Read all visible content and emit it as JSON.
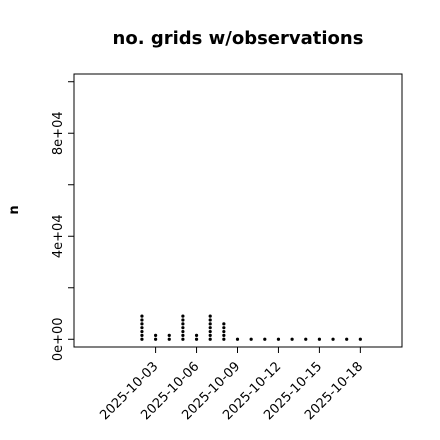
{
  "chart_data": {
    "type": "scatter",
    "title": "no. grids w/observations",
    "xlabel": "",
    "ylabel": "n",
    "y_ticks": [
      "0e+00",
      "4e+04",
      "8e+04"
    ],
    "y_tick_values": [
      0,
      40000,
      80000
    ],
    "y_minor_ticks": [
      20000,
      60000,
      100000
    ],
    "ylim": [
      -3000,
      103000
    ],
    "x_ticks": [
      "2025-10-03",
      "2025-10-06",
      "2025-10-09",
      "2025-10-12",
      "2025-10-15",
      "2025-10-18"
    ],
    "x_tick_colors": [
      "#000000",
      "#000000",
      "#2e8b2e",
      "#000000",
      "#000000",
      "#000000"
    ],
    "xlim": [
      "2025-09-29",
      "2025-10-19"
    ],
    "grid": false,
    "marker_color": "#000000",
    "points": [
      {
        "date": "2025-10-02",
        "values": [
          0,
          1500,
          3000,
          4500,
          6000,
          7500,
          9000
        ]
      },
      {
        "date": "2025-10-03",
        "values": [
          0,
          1500
        ]
      },
      {
        "date": "2025-10-04",
        "values": [
          0,
          1500
        ]
      },
      {
        "date": "2025-10-05",
        "values": [
          0,
          1500,
          3000,
          4500,
          6000,
          7500,
          9000
        ]
      },
      {
        "date": "2025-10-06",
        "values": [
          0,
          1500
        ]
      },
      {
        "date": "2025-10-07",
        "values": [
          0,
          1500,
          3000,
          4500,
          6000,
          7500,
          9000
        ]
      },
      {
        "date": "2025-10-08",
        "values": [
          0,
          1500,
          3000,
          4500,
          6000
        ]
      },
      {
        "date": "2025-10-09",
        "values": [
          0
        ]
      },
      {
        "date": "2025-10-10",
        "values": [
          0
        ]
      },
      {
        "date": "2025-10-11",
        "values": [
          0
        ]
      },
      {
        "date": "2025-10-12",
        "values": [
          0
        ]
      },
      {
        "date": "2025-10-13",
        "values": [
          0
        ]
      },
      {
        "date": "2025-10-14",
        "values": [
          0
        ]
      },
      {
        "date": "2025-10-15",
        "values": [
          0
        ]
      },
      {
        "date": "2025-10-16",
        "values": [
          0
        ]
      },
      {
        "date": "2025-10-17",
        "values": [
          0
        ]
      },
      {
        "date": "2025-10-18",
        "values": [
          0
        ]
      }
    ]
  }
}
